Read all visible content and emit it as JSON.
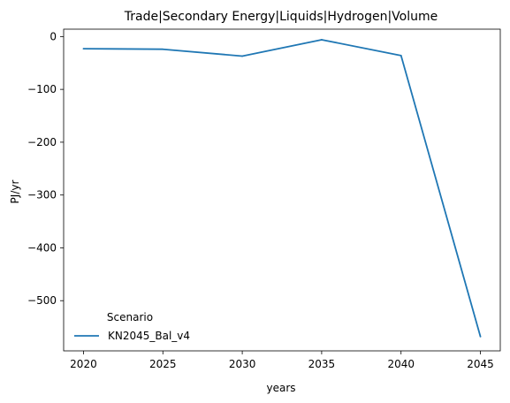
{
  "chart_data": {
    "type": "line",
    "title": "Trade|Secondary Energy|Liquids|Hydrogen|Volume",
    "xlabel": "years",
    "ylabel": "PJ/yr",
    "x": [
      2020,
      2025,
      2030,
      2035,
      2040,
      2045
    ],
    "xlim": [
      2018.75,
      2046.25
    ],
    "ylim": [
      -595,
      14
    ],
    "xticks": [
      2020,
      2025,
      2030,
      2035,
      2040,
      2045
    ],
    "yticks": [
      0,
      -100,
      -200,
      -300,
      -400,
      -500
    ],
    "ytick_labels": [
      "0",
      "−100",
      "−200",
      "−300",
      "−400",
      "−500"
    ],
    "grid": false,
    "legend": {
      "title": "Scenario",
      "placement": "lower-left"
    },
    "series": [
      {
        "name": "KN2045_Bal_v4",
        "color": "#1f77b4",
        "values": [
          -23,
          -24,
          -37,
          -6,
          -36,
          -568
        ]
      }
    ]
  }
}
